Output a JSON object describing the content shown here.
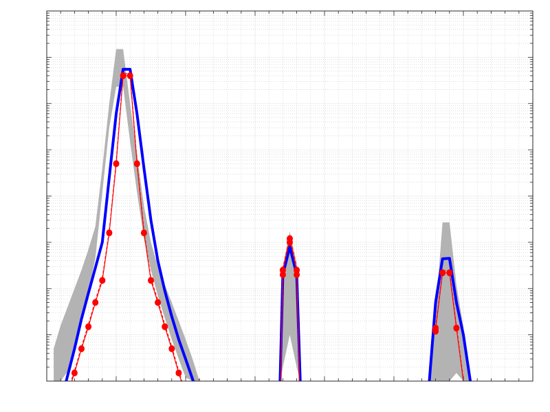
{
  "chart_data": {
    "type": "line",
    "title": "",
    "xlabel": "",
    "ylabel": "",
    "xlim": [
      0,
      70
    ],
    "yscale": "log",
    "ylim": [
      1e-08,
      1
    ],
    "grid": true,
    "minor_grid": true,
    "tick_labels_visible": false,
    "colors": {
      "band": "#b3b3b3",
      "mean_line": "#0000ff",
      "measured": "#ff0000",
      "grid": "#c8c8c8",
      "axes": "#262626"
    },
    "series": [
      {
        "role": "uncertainty-band",
        "segments": [
          {
            "x": [
              1,
              2,
              3,
              4,
              5,
              6,
              7,
              8,
              9,
              10,
              11,
              12,
              13,
              14,
              15,
              16,
              17,
              18,
              19,
              20,
              21,
              22,
              23,
              24
            ],
            "upper": [
              5e-08,
              1.6e-07,
              4e-07,
              1e-06,
              2.5e-06,
              7e-06,
              2.2e-05,
              0.0004,
              0.01,
              0.15,
              0.15,
              0.01,
              0.0008,
              6e-05,
              1e-05,
              3e-06,
              1.2e-06,
              5e-07,
              2e-07,
              8e-08,
              3e-08,
              1e-08,
              1e-08,
              1e-08
            ],
            "lower": [
              1e-08,
              1e-08,
              1.6e-08,
              5e-08,
              1.7e-07,
              8e-07,
              4.5e-06,
              0.00012,
              0.003,
              0.023,
              0.023,
              0.0015,
              0.00012,
              1.2e-05,
              2.5e-06,
              7e-07,
              2.3e-07,
              8e-08,
              3e-08,
              1.2e-08,
              1e-08,
              1e-08,
              1e-08,
              1e-08
            ]
          },
          {
            "x": [
              33.6,
              34,
              35,
              36,
              36.5
            ],
            "upper": [
              1e-08,
              3e-06,
              1.7e-05,
              3.5e-06,
              1e-08
            ],
            "lower": [
              1e-08,
              2e-08,
              1e-07,
              2e-08,
              1e-08
            ]
          },
          {
            "x": [
              55,
              56,
              57,
              58,
              59,
              60,
              61
            ],
            "upper": [
              1e-08,
              3e-07,
              2.7e-05,
              2.7e-05,
              1.2e-06,
              1.5e-07,
              1e-08
            ],
            "lower": [
              1e-08,
              1e-08,
              1e-08,
              1e-08,
              1.5e-08,
              1e-08,
              1e-08
            ]
          }
        ]
      },
      {
        "role": "mean",
        "segments": [
          {
            "x": [
              2.8,
              3,
              4,
              5,
              6,
              7,
              8,
              9,
              10,
              11,
              12,
              13,
              14,
              15,
              16,
              17,
              18,
              19,
              20,
              21,
              22,
              23.1
            ],
            "y": [
              1e-08,
              1.3e-08,
              5e-08,
              2.2e-07,
              8e-07,
              2.8e-06,
              1e-05,
              0.00025,
              0.006,
              0.055,
              0.055,
              0.006,
              0.0004,
              3e-05,
              4e-06,
              9e-07,
              2.5e-07,
              8e-08,
              3e-08,
              1.1e-08,
              4e-09,
              1e-08
            ]
          },
          {
            "x": [
              33.6,
              34,
              35,
              36,
              36.5
            ],
            "y": [
              1e-08,
              2e-06,
              8e-06,
              2e-06,
              1e-08
            ]
          },
          {
            "x": [
              55.1,
              56,
              57,
              58,
              59,
              60,
              61
            ],
            "y": [
              1e-08,
              5e-07,
              4.4e-06,
              4.5e-06,
              5e-07,
              1e-07,
              1e-08
            ]
          }
        ]
      },
      {
        "role": "measured",
        "segments": [
          {
            "x": [
              3.6,
              4,
              5,
              6,
              7,
              8,
              9,
              10,
              11,
              12,
              13,
              14,
              15,
              16,
              17,
              18,
              19,
              20,
              21,
              21.9
            ],
            "y": [
              1e-08,
              1.5e-08,
              5e-08,
              1.5e-07,
              5e-07,
              1.5e-06,
              1.6e-05,
              0.0005,
              0.04,
              0.04,
              0.0005,
              1.6e-05,
              1.5e-06,
              5e-07,
              1.5e-07,
              5e-08,
              1.5e-08,
              5e-09,
              1.5e-09,
              1e-08
            ],
            "markers_x": [
              4,
              5,
              6,
              7,
              8,
              9,
              10,
              11,
              12,
              13,
              14,
              15,
              16,
              17,
              18,
              19,
              20,
              21
            ],
            "markers_y": [
              1.5e-08,
              5e-08,
              1.5e-07,
              5e-07,
              1.5e-06,
              1.6e-05,
              0.0005,
              0.04,
              0.04,
              0.0005,
              1.6e-05,
              1.5e-06,
              5e-07,
              1.5e-07,
              5e-08,
              1.5e-08,
              5e-09,
              1.5e-09
            ]
          },
          {
            "x": [
              33.7,
              34,
              35,
              36,
              36.4
            ],
            "y": [
              1e-08,
              2.5e-06,
              1.2e-05,
              2.5e-06,
              1e-08
            ],
            "markers_x": [
              34,
              34,
              35,
              35,
              36,
              36
            ],
            "markers_y": [
              2e-06,
              2.5e-06,
              1.2e-05,
              1e-05,
              2e-06,
              2.5e-06
            ]
          },
          {
            "x": [
              56,
              57,
              58,
              59,
              60
            ],
            "y": [
              1.3e-07,
              2.2e-06,
              2.2e-06,
              1.4e-07,
              1e-08
            ],
            "markers_x": [
              56,
              56,
              57,
              58,
              59
            ],
            "markers_y": [
              1.2e-07,
              1.4e-07,
              2.2e-06,
              2.2e-06,
              1.4e-07
            ]
          }
        ]
      }
    ]
  }
}
